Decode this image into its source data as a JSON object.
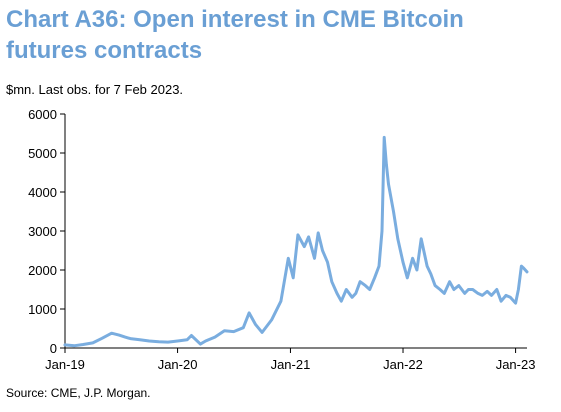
{
  "title": "Chart A36: Open interest in CME Bitcoin futures contracts",
  "subtitle": "$mn. Last obs. for 7 Feb 2023.",
  "source": "Source: CME, J.P. Morgan.",
  "colors": {
    "title": "#6a9fd4",
    "series": "#7aaddf",
    "axis": "#000000"
  },
  "chart_data": {
    "type": "line",
    "title": "Chart A36: Open interest in CME Bitcoin futures contracts",
    "xlabel": "",
    "ylabel": "",
    "unit": "$mn",
    "grid": false,
    "legend": "none",
    "ylim": [
      0,
      6000
    ],
    "yticks": [
      0,
      1000,
      2000,
      3000,
      4000,
      5000,
      6000
    ],
    "yticklabels": [
      "0",
      "1000",
      "2000",
      "3000",
      "4000",
      "5000",
      "6000"
    ],
    "xlim": [
      "2019-01-01",
      "2023-02-07"
    ],
    "xticks": [
      "2019-01-01",
      "2020-01-01",
      "2021-01-01",
      "2022-01-01",
      "2023-01-01"
    ],
    "xticklabels": [
      "Jan-19",
      "Jan-20",
      "Jan-21",
      "Jan-22",
      "Jan-23"
    ],
    "series": [
      {
        "name": "",
        "x": [
          "2019-01-01",
          "2019-02-01",
          "2019-03-01",
          "2019-04-01",
          "2019-05-01",
          "2019-06-01",
          "2019-06-25",
          "2019-07-15",
          "2019-08-01",
          "2019-09-01",
          "2019-10-01",
          "2019-11-01",
          "2019-12-01",
          "2020-01-01",
          "2020-02-01",
          "2020-02-15",
          "2020-03-15",
          "2020-04-01",
          "2020-05-01",
          "2020-06-01",
          "2020-07-01",
          "2020-08-01",
          "2020-08-20",
          "2020-09-10",
          "2020-10-01",
          "2020-11-01",
          "2020-12-01",
          "2020-12-25",
          "2021-01-10",
          "2021-01-25",
          "2021-02-15",
          "2021-03-01",
          "2021-03-20",
          "2021-04-01",
          "2021-04-15",
          "2021-05-01",
          "2021-05-15",
          "2021-06-01",
          "2021-06-15",
          "2021-07-01",
          "2021-07-20",
          "2021-08-01",
          "2021-08-15",
          "2021-09-01",
          "2021-09-15",
          "2021-10-01",
          "2021-10-15",
          "2021-10-25",
          "2021-11-01",
          "2021-11-08",
          "2021-11-15",
          "2021-12-01",
          "2021-12-15",
          "2022-01-01",
          "2022-01-15",
          "2022-02-01",
          "2022-02-15",
          "2022-03-01",
          "2022-03-20",
          "2022-04-01",
          "2022-04-15",
          "2022-05-01",
          "2022-05-15",
          "2022-06-01",
          "2022-06-15",
          "2022-07-01",
          "2022-07-20",
          "2022-08-01",
          "2022-08-15",
          "2022-09-01",
          "2022-09-15",
          "2022-10-01",
          "2022-10-15",
          "2022-11-01",
          "2022-11-15",
          "2022-12-01",
          "2022-12-15",
          "2023-01-01",
          "2023-01-10",
          "2023-01-20",
          "2023-01-27",
          "2023-02-07"
        ],
        "values": [
          80,
          60,
          90,
          130,
          250,
          380,
          330,
          280,
          240,
          210,
          180,
          160,
          150,
          180,
          210,
          320,
          100,
          180,
          280,
          440,
          420,
          520,
          900,
          600,
          400,
          720,
          1200,
          2300,
          1800,
          2900,
          2600,
          2850,
          2300,
          2950,
          2500,
          2200,
          1700,
          1400,
          1200,
          1500,
          1300,
          1400,
          1700,
          1600,
          1500,
          1800,
          2100,
          3000,
          5400,
          4700,
          4200,
          3500,
          2800,
          2200,
          1800,
          2300,
          2000,
          2800,
          2100,
          1900,
          1600,
          1500,
          1400,
          1700,
          1500,
          1600,
          1400,
          1500,
          1500,
          1400,
          1350,
          1450,
          1350,
          1500,
          1200,
          1350,
          1300,
          1150,
          1500,
          2100,
          2050,
          1950
        ]
      }
    ]
  }
}
